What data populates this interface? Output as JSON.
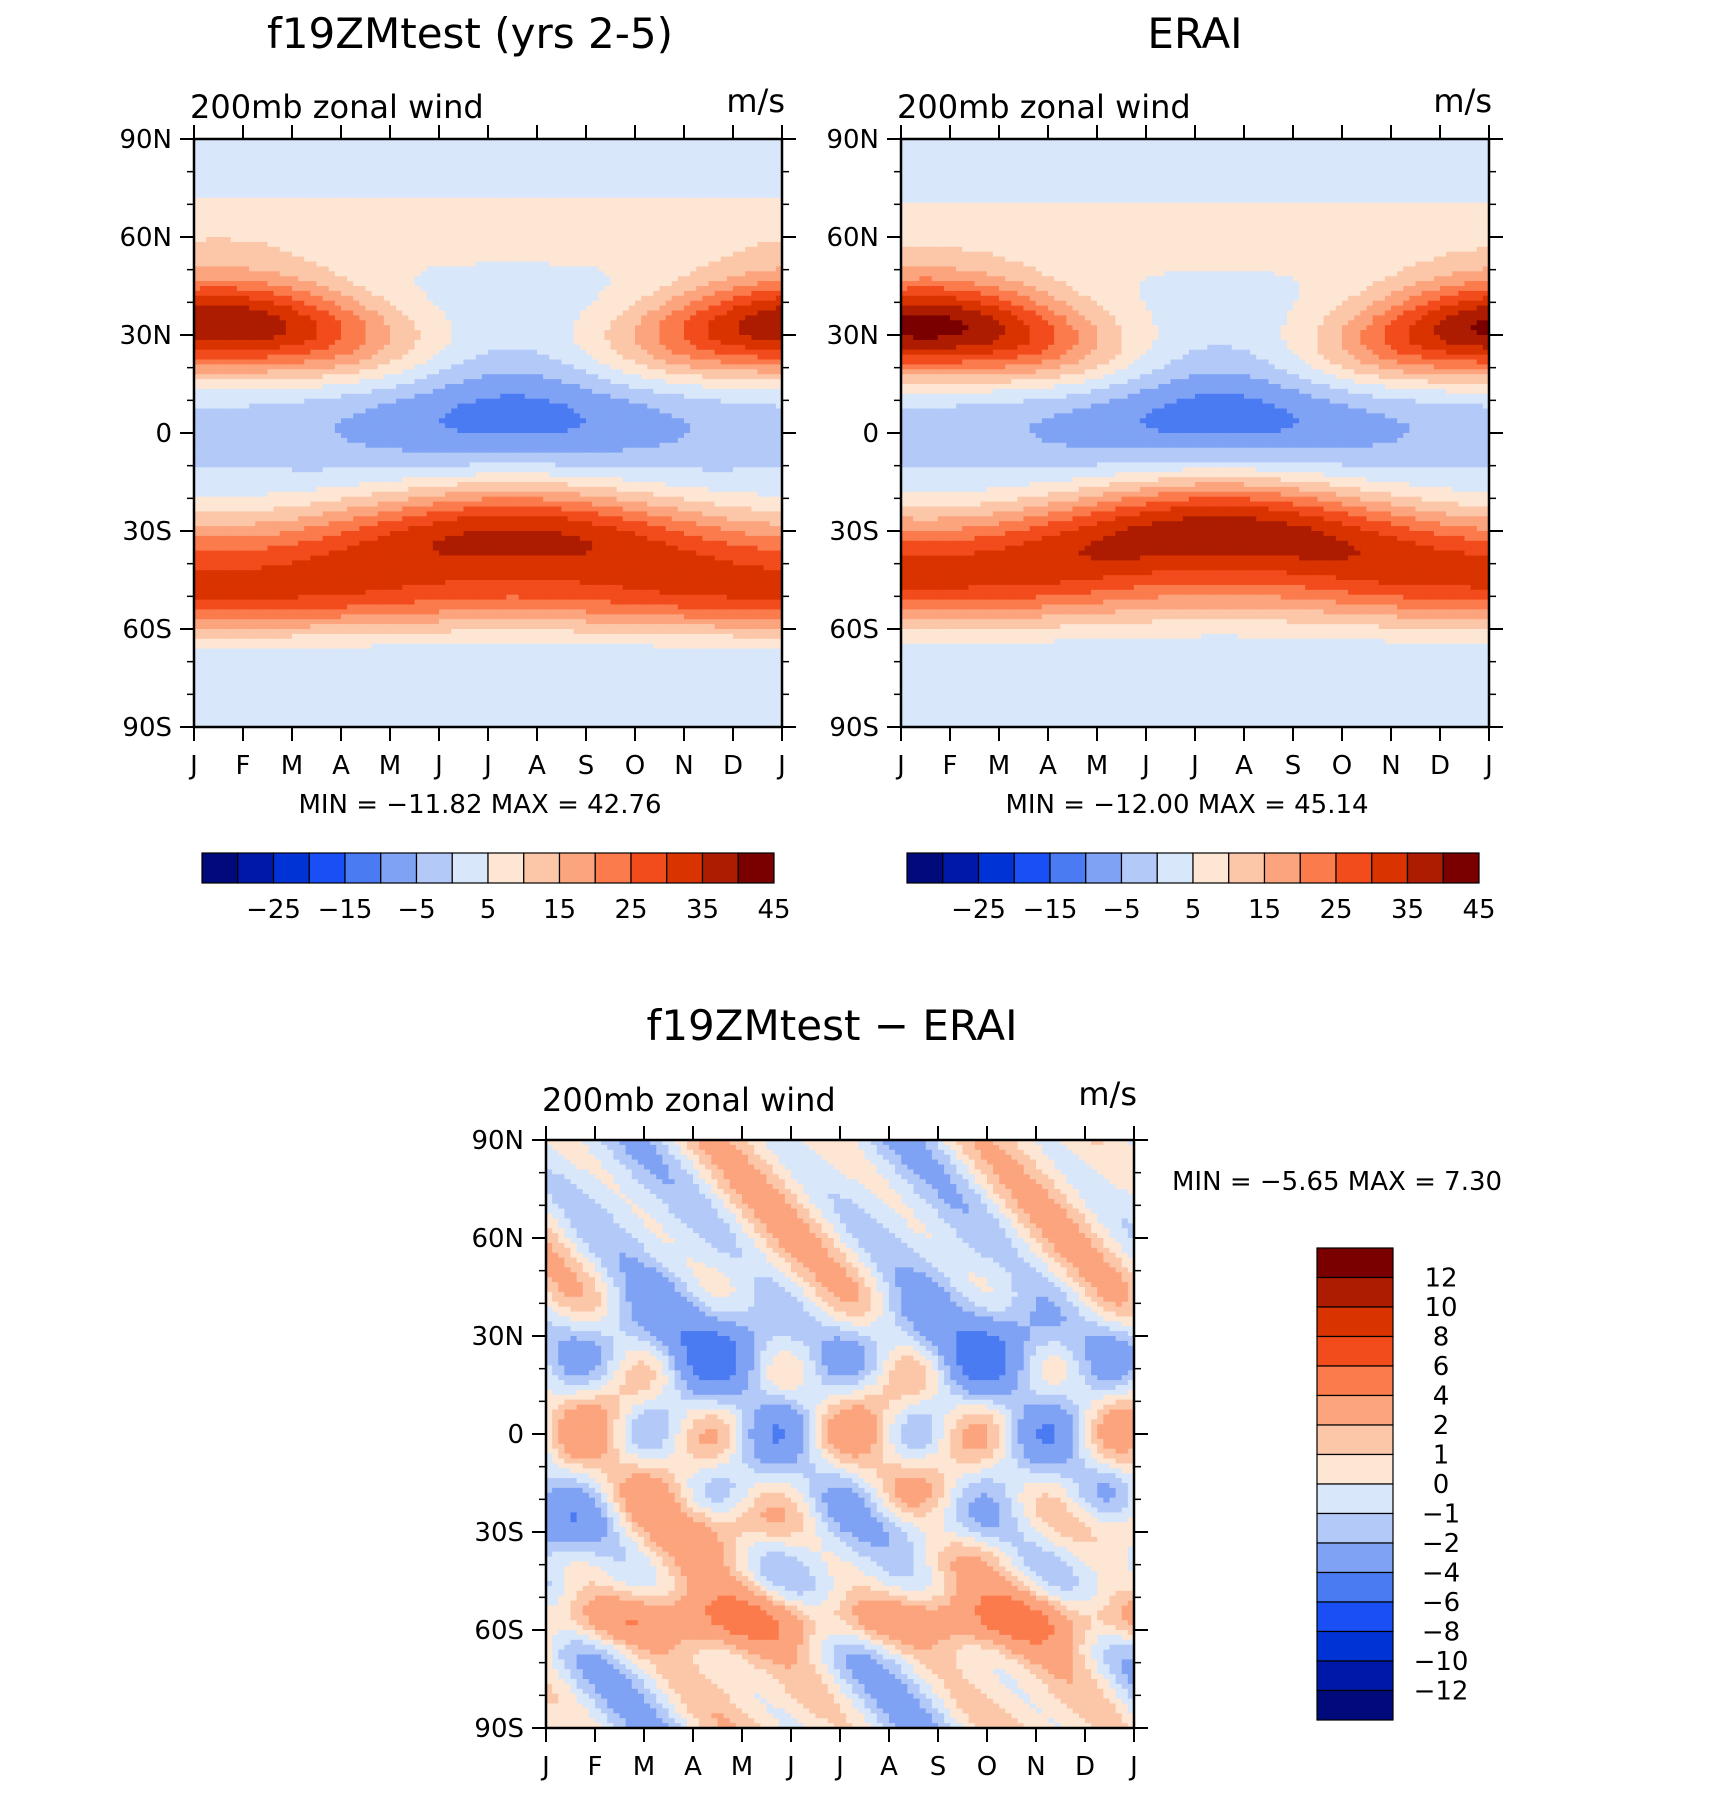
{
  "units": "m/s",
  "variable": "200mb zonal wind",
  "colors": {
    "full_field": [
      "#000a7a",
      "#0018a8",
      "#0033d6",
      "#1a4ff5",
      "#4a7bf2",
      "#7fa2f4",
      "#b3c9f8",
      "#d9e7fb",
      "#fde6d3",
      "#fcc7a9",
      "#fba47d",
      "#fb7b4d",
      "#f24b1c",
      "#d93300",
      "#ad1c00",
      "#7a0000"
    ],
    "difference": [
      "#000a7a",
      "#0018a8",
      "#0033d6",
      "#1a4ff5",
      "#4a7bf2",
      "#7fa2f4",
      "#b3c9f8",
      "#d9e7fb",
      "#fde6d3",
      "#fcc7a9",
      "#fba47d",
      "#fb7b4d",
      "#f24b1c",
      "#d93300",
      "#ad1c00",
      "#7a0000"
    ]
  },
  "chart_data": [
    {
      "type": "heatmap",
      "title": "f19ZMtest (yrs 2-5)",
      "subtitle_left": "200mb zonal wind",
      "subtitle_right": "m/s",
      "x": [
        "J",
        "F",
        "M",
        "A",
        "M",
        "J",
        "J",
        "A",
        "S",
        "O",
        "N",
        "D",
        "J"
      ],
      "y_ticks": [
        "90N",
        "60N",
        "30N",
        "0",
        "30S",
        "60S",
        "90S"
      ],
      "ylim": [
        -90,
        90
      ],
      "min_text": "MIN =  −11.82  MAX =    42.76",
      "min": -11.82,
      "max": 42.76,
      "colorbar_labels": [
        "−25",
        "−15",
        "−5",
        "5",
        "15",
        "25",
        "35",
        "45"
      ],
      "colorbar_orientation": "horizontal"
    },
    {
      "type": "heatmap",
      "title": "ERAI",
      "subtitle_left": "200mb zonal wind",
      "subtitle_right": "m/s",
      "x": [
        "J",
        "F",
        "M",
        "A",
        "M",
        "J",
        "J",
        "A",
        "S",
        "O",
        "N",
        "D",
        "J"
      ],
      "y_ticks": [
        "90N",
        "60N",
        "30N",
        "0",
        "30S",
        "60S",
        "90S"
      ],
      "ylim": [
        -90,
        90
      ],
      "min_text": "MIN =  −12.00  MAX =    45.14",
      "min": -12.0,
      "max": 45.14,
      "colorbar_labels": [
        "−25",
        "−15",
        "−5",
        "5",
        "15",
        "25",
        "35",
        "45"
      ],
      "colorbar_orientation": "horizontal"
    },
    {
      "type": "heatmap",
      "title": "f19ZMtest − ERAI",
      "subtitle_left": "200mb zonal wind",
      "subtitle_right": "m/s",
      "x": [
        "J",
        "F",
        "M",
        "A",
        "M",
        "J",
        "J",
        "A",
        "S",
        "O",
        "N",
        "D",
        "J"
      ],
      "y_ticks": [
        "90N",
        "60N",
        "30N",
        "0",
        "30S",
        "60S",
        "90S"
      ],
      "ylim": [
        -90,
        90
      ],
      "min_text": "MIN =    −5.65  MAX =     7.30",
      "min": -5.65,
      "max": 7.3,
      "colorbar_labels": [
        "12",
        "10",
        "8",
        "6",
        "4",
        "2",
        "1",
        "0",
        "−1",
        "−2",
        "−4",
        "−6",
        "−8",
        "−10",
        "−12"
      ],
      "colorbar_orientation": "vertical"
    }
  ]
}
